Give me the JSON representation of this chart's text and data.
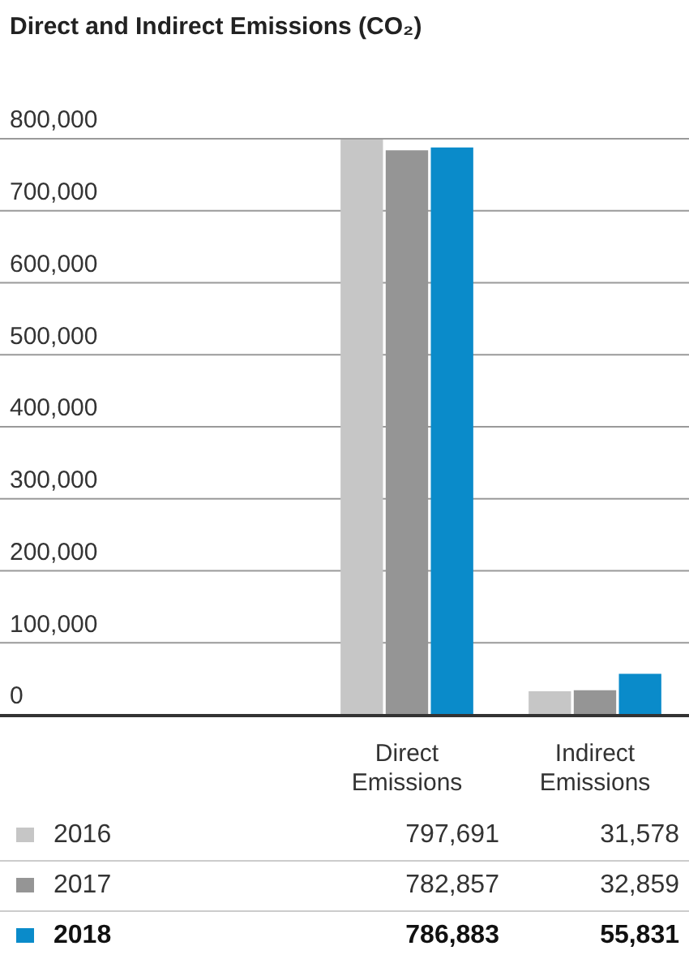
{
  "chart_data": {
    "type": "bar",
    "title": "Direct and Indirect Emissions (CO₂)",
    "categories": [
      "Direct Emissions",
      "Indirect Emissions"
    ],
    "series": [
      {
        "name": "2016",
        "color": "#c6c6c6",
        "values": [
          797691,
          31578
        ],
        "value_labels": [
          "797,691",
          "31,578"
        ]
      },
      {
        "name": "2017",
        "color": "#959595",
        "values": [
          782857,
          32859
        ],
        "value_labels": [
          "782,857",
          "32,859"
        ]
      },
      {
        "name": "2018",
        "color": "#0a8bca",
        "values": [
          786883,
          55831
        ],
        "value_labels": [
          "786,883",
          "55,831"
        ]
      }
    ],
    "ylim": [
      0,
      800000
    ],
    "yticks": [
      {
        "value": 0,
        "label": "0"
      },
      {
        "value": 100000,
        "label": "100,000"
      },
      {
        "value": 200000,
        "label": "200,000"
      },
      {
        "value": 300000,
        "label": "300,000"
      },
      {
        "value": 400000,
        "label": "400,000"
      },
      {
        "value": 500000,
        "label": "500,000"
      },
      {
        "value": 600000,
        "label": "600,000"
      },
      {
        "value": 700000,
        "label": "700,000"
      },
      {
        "value": 800000,
        "label": "800,000"
      }
    ],
    "grid": "y",
    "legend": "bottom"
  }
}
